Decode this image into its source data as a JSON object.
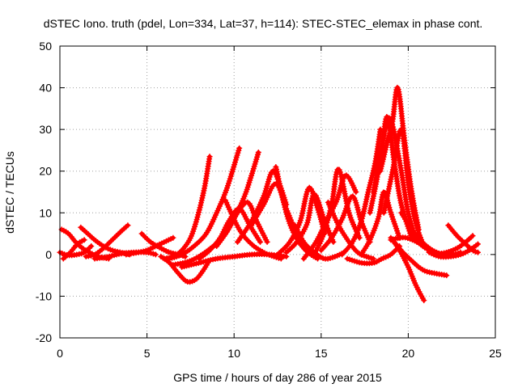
{
  "chart_data": {
    "type": "scatter",
    "title": "dSTEC Iono. truth (pdel, Lon=334, Lat=37, h=114): STEC-STEC_elemax in phase cont.",
    "xlabel": "GPS time / hours of day 286 of year 2015",
    "ylabel": "dSTEC  / TECUs",
    "xlim": [
      0,
      25
    ],
    "ylim": [
      -20,
      50
    ],
    "xticks": [
      0,
      5,
      10,
      15,
      20,
      25
    ],
    "yticks": [
      -20,
      -10,
      0,
      10,
      20,
      30,
      40,
      50
    ],
    "grid": true,
    "marker": "+",
    "color": "#ff0000",
    "series": [
      {
        "x": [
          0.0,
          0.3,
          0.6,
          1.0,
          1.4,
          1.8
        ],
        "y": [
          0.5,
          0.0,
          -0.2,
          0.0,
          0.5,
          2.0
        ]
      },
      {
        "x": [
          0.1,
          0.5,
          0.9,
          1.3,
          1.7,
          2.2,
          2.8
        ],
        "y": [
          6.0,
          5.0,
          3.0,
          1.5,
          0.5,
          -0.5,
          -1.0
        ]
      },
      {
        "x": [
          0.2,
          0.6,
          1.0,
          1.4
        ],
        "y": [
          -1.0,
          0.5,
          2.5,
          3.5
        ]
      },
      {
        "x": [
          1.2,
          1.6,
          2.0,
          2.5,
          3.0,
          3.5,
          4.0
        ],
        "y": [
          6.5,
          5.0,
          3.5,
          2.0,
          1.0,
          0.5,
          0.0
        ]
      },
      {
        "x": [
          1.5,
          2.0,
          2.5,
          3.0,
          3.5,
          3.9
        ],
        "y": [
          -0.5,
          0.0,
          1.5,
          3.5,
          5.5,
          7.0
        ]
      },
      {
        "x": [
          2.0,
          2.8,
          3.5,
          4.2,
          5.0,
          5.5
        ],
        "y": [
          -1.0,
          -0.5,
          0.2,
          0.5,
          0.5,
          0.0
        ]
      },
      {
        "x": [
          3.8,
          4.5,
          5.0,
          5.5,
          6.0,
          6.5
        ],
        "y": [
          0.0,
          0.5,
          1.0,
          2.0,
          3.0,
          4.0
        ]
      },
      {
        "x": [
          4.7,
          5.2,
          5.8,
          6.3,
          6.8,
          7.2
        ],
        "y": [
          5.0,
          3.0,
          1.5,
          0.5,
          0.0,
          -0.5
        ]
      },
      {
        "x": [
          5.8,
          6.3,
          6.8,
          7.3,
          7.8,
          8.2,
          8.5
        ],
        "y": [
          -0.5,
          -2.0,
          -4.5,
          -6.5,
          -6.0,
          -4.0,
          -2.0
        ]
      },
      {
        "x": [
          6.0,
          6.5,
          7.0,
          7.5,
          7.9,
          8.3,
          8.6
        ],
        "y": [
          -1.0,
          -0.5,
          1.0,
          4.0,
          9.0,
          16.0,
          23.5
        ]
      },
      {
        "x": [
          6.3,
          7.0,
          7.7,
          8.4,
          9.0,
          9.6,
          10.3
        ],
        "y": [
          -1.0,
          0.0,
          2.0,
          5.0,
          10.0,
          16.0,
          25.5
        ]
      },
      {
        "x": [
          6.5,
          7.5,
          8.5,
          9.5,
          10.5,
          11.0,
          11.4
        ],
        "y": [
          -2.5,
          -1.5,
          1.0,
          5.0,
          13.0,
          19.0,
          24.5
        ]
      },
      {
        "x": [
          7.0,
          8.0,
          9.0,
          10.0,
          11.0,
          12.0,
          13.0
        ],
        "y": [
          -3.0,
          -2.0,
          -1.0,
          -0.5,
          0.0,
          0.0,
          -0.5
        ]
      },
      {
        "x": [
          8.0,
          8.6,
          9.2,
          9.7,
          10.3,
          10.9,
          11.5
        ],
        "y": [
          -1.0,
          1.0,
          4.0,
          8.0,
          11.0,
          7.0,
          3.0
        ]
      },
      {
        "x": [
          9.0,
          9.6,
          10.2,
          10.8,
          11.3,
          11.9
        ],
        "y": [
          2.0,
          5.5,
          10.0,
          12.5,
          8.0,
          3.0
        ]
      },
      {
        "x": [
          9.5,
          10.3,
          11.0,
          11.7,
          12.3,
          12.7
        ],
        "y": [
          13.0,
          6.0,
          2.5,
          0.5,
          -0.5,
          -1.0
        ]
      },
      {
        "x": [
          10.2,
          11.0,
          11.7,
          12.2,
          12.6,
          13.0
        ],
        "y": [
          3.0,
          8.0,
          14.0,
          20.0,
          17.0,
          12.0
        ]
      },
      {
        "x": [
          11.0,
          11.7,
          12.4,
          13.0,
          13.6,
          14.2
        ],
        "y": [
          7.0,
          12.0,
          17.0,
          11.0,
          5.0,
          1.0
        ]
      },
      {
        "x": [
          12.4,
          13.0,
          13.5,
          14.0,
          14.4,
          14.8
        ],
        "y": [
          21.0,
          10.0,
          4.5,
          1.5,
          0.0,
          -1.0
        ]
      },
      {
        "x": [
          12.5,
          13.2,
          13.8,
          14.3,
          14.8,
          15.2
        ],
        "y": [
          0.0,
          3.0,
          8.0,
          16.0,
          11.0,
          5.0
        ]
      },
      {
        "x": [
          13.0,
          13.6,
          14.2,
          14.6,
          15.2,
          15.7
        ],
        "y": [
          0.5,
          3.0,
          7.5,
          14.5,
          8.0,
          3.0
        ]
      },
      {
        "x": [
          13.5,
          14.0,
          14.6,
          15.2,
          15.8,
          16.3
        ],
        "y": [
          7.0,
          3.0,
          0.5,
          -1.0,
          -0.5,
          0.5
        ]
      },
      {
        "x": [
          14.0,
          14.7,
          15.3,
          15.9,
          16.4,
          17.0
        ],
        "y": [
          -1.0,
          3.0,
          8.0,
          13.0,
          19.0,
          15.0
        ]
      },
      {
        "x": [
          14.6,
          15.1,
          15.6,
          16.0,
          16.6,
          17.2
        ],
        "y": [
          0.0,
          4.5,
          12.0,
          20.5,
          10.0,
          4.0
        ]
      },
      {
        "x": [
          15.0,
          15.6,
          16.2,
          16.8,
          17.3,
          17.8
        ],
        "y": [
          1.0,
          4.0,
          8.5,
          14.0,
          8.0,
          3.0
        ]
      },
      {
        "x": [
          15.4,
          16.0,
          16.6,
          17.1,
          17.6,
          18.0
        ],
        "y": [
          12.5,
          7.0,
          3.0,
          0.5,
          -0.5,
          -1.0
        ]
      },
      {
        "x": [
          16.2,
          16.8,
          17.3,
          17.7,
          18.1,
          18.4
        ],
        "y": [
          0.0,
          3.0,
          8.0,
          15.0,
          22.0,
          30.0
        ]
      },
      {
        "x": [
          17.3,
          17.8,
          18.3,
          18.6,
          19.0,
          19.5
        ],
        "y": [
          0.0,
          3.5,
          9.0,
          15.0,
          10.0,
          4.0
        ]
      },
      {
        "x": [
          16.5,
          17.3,
          18.0,
          18.5,
          19.0,
          19.5
        ],
        "y": [
          -1.0,
          -2.0,
          -2.0,
          -1.0,
          0.0,
          2.0
        ]
      },
      {
        "x": [
          17.8,
          18.2,
          18.5,
          18.8,
          19.2,
          19.6,
          20.2
        ],
        "y": [
          10.0,
          18.0,
          26.0,
          33.0,
          22.0,
          12.0,
          4.0
        ]
      },
      {
        "x": [
          18.0,
          18.4,
          18.8,
          19.1,
          19.6,
          20.0,
          20.5
        ],
        "y": [
          15.0,
          24.0,
          32.0,
          31.0,
          20.0,
          10.0,
          3.0
        ]
      },
      {
        "x": [
          18.4,
          18.8,
          19.1,
          19.4,
          19.8,
          20.2,
          20.6
        ],
        "y": [
          20.0,
          27.0,
          32.0,
          40.0,
          27.0,
          15.0,
          6.0
        ]
      },
      {
        "x": [
          18.6,
          19.1,
          19.6,
          20.0,
          20.4,
          20.8
        ],
        "y": [
          10.0,
          20.0,
          30.0,
          17.0,
          8.0,
          3.0
        ]
      },
      {
        "x": [
          19.2,
          19.7,
          20.2,
          20.6,
          21.0,
          21.5,
          22.2
        ],
        "y": [
          3.0,
          0.5,
          -1.5,
          -3.0,
          -4.0,
          -4.5,
          -5.0
        ]
      },
      {
        "x": [
          19.0,
          19.5,
          20.0,
          20.4,
          20.7,
          20.9
        ],
        "y": [
          4.0,
          1.0,
          -3.0,
          -7.0,
          -9.5,
          -11.0
        ]
      },
      {
        "x": [
          19.0,
          19.5,
          19.9,
          20.5,
          21.0,
          21.5,
          22.0
        ],
        "y": [
          3.5,
          4.0,
          4.0,
          3.0,
          1.5,
          0.5,
          0.0
        ]
      },
      {
        "x": [
          19.6,
          20.2,
          20.8,
          21.4,
          22.0,
          22.6,
          23.0
        ],
        "y": [
          10.0,
          6.0,
          3.0,
          1.0,
          0.0,
          0.0,
          0.5
        ]
      },
      {
        "x": [
          21.2,
          21.8,
          22.4,
          23.0,
          23.5,
          24.0
        ],
        "y": [
          0.5,
          -0.5,
          -0.5,
          0.0,
          1.0,
          2.5
        ]
      },
      {
        "x": [
          22.3,
          22.8,
          23.3,
          23.7,
          24.0
        ],
        "y": [
          7.0,
          4.5,
          2.5,
          1.0,
          0.5
        ]
      },
      {
        "x": [
          21.5,
          22.2,
          22.8,
          23.3,
          23.7
        ],
        "y": [
          0.0,
          0.5,
          1.5,
          3.0,
          4.5
        ]
      }
    ]
  }
}
